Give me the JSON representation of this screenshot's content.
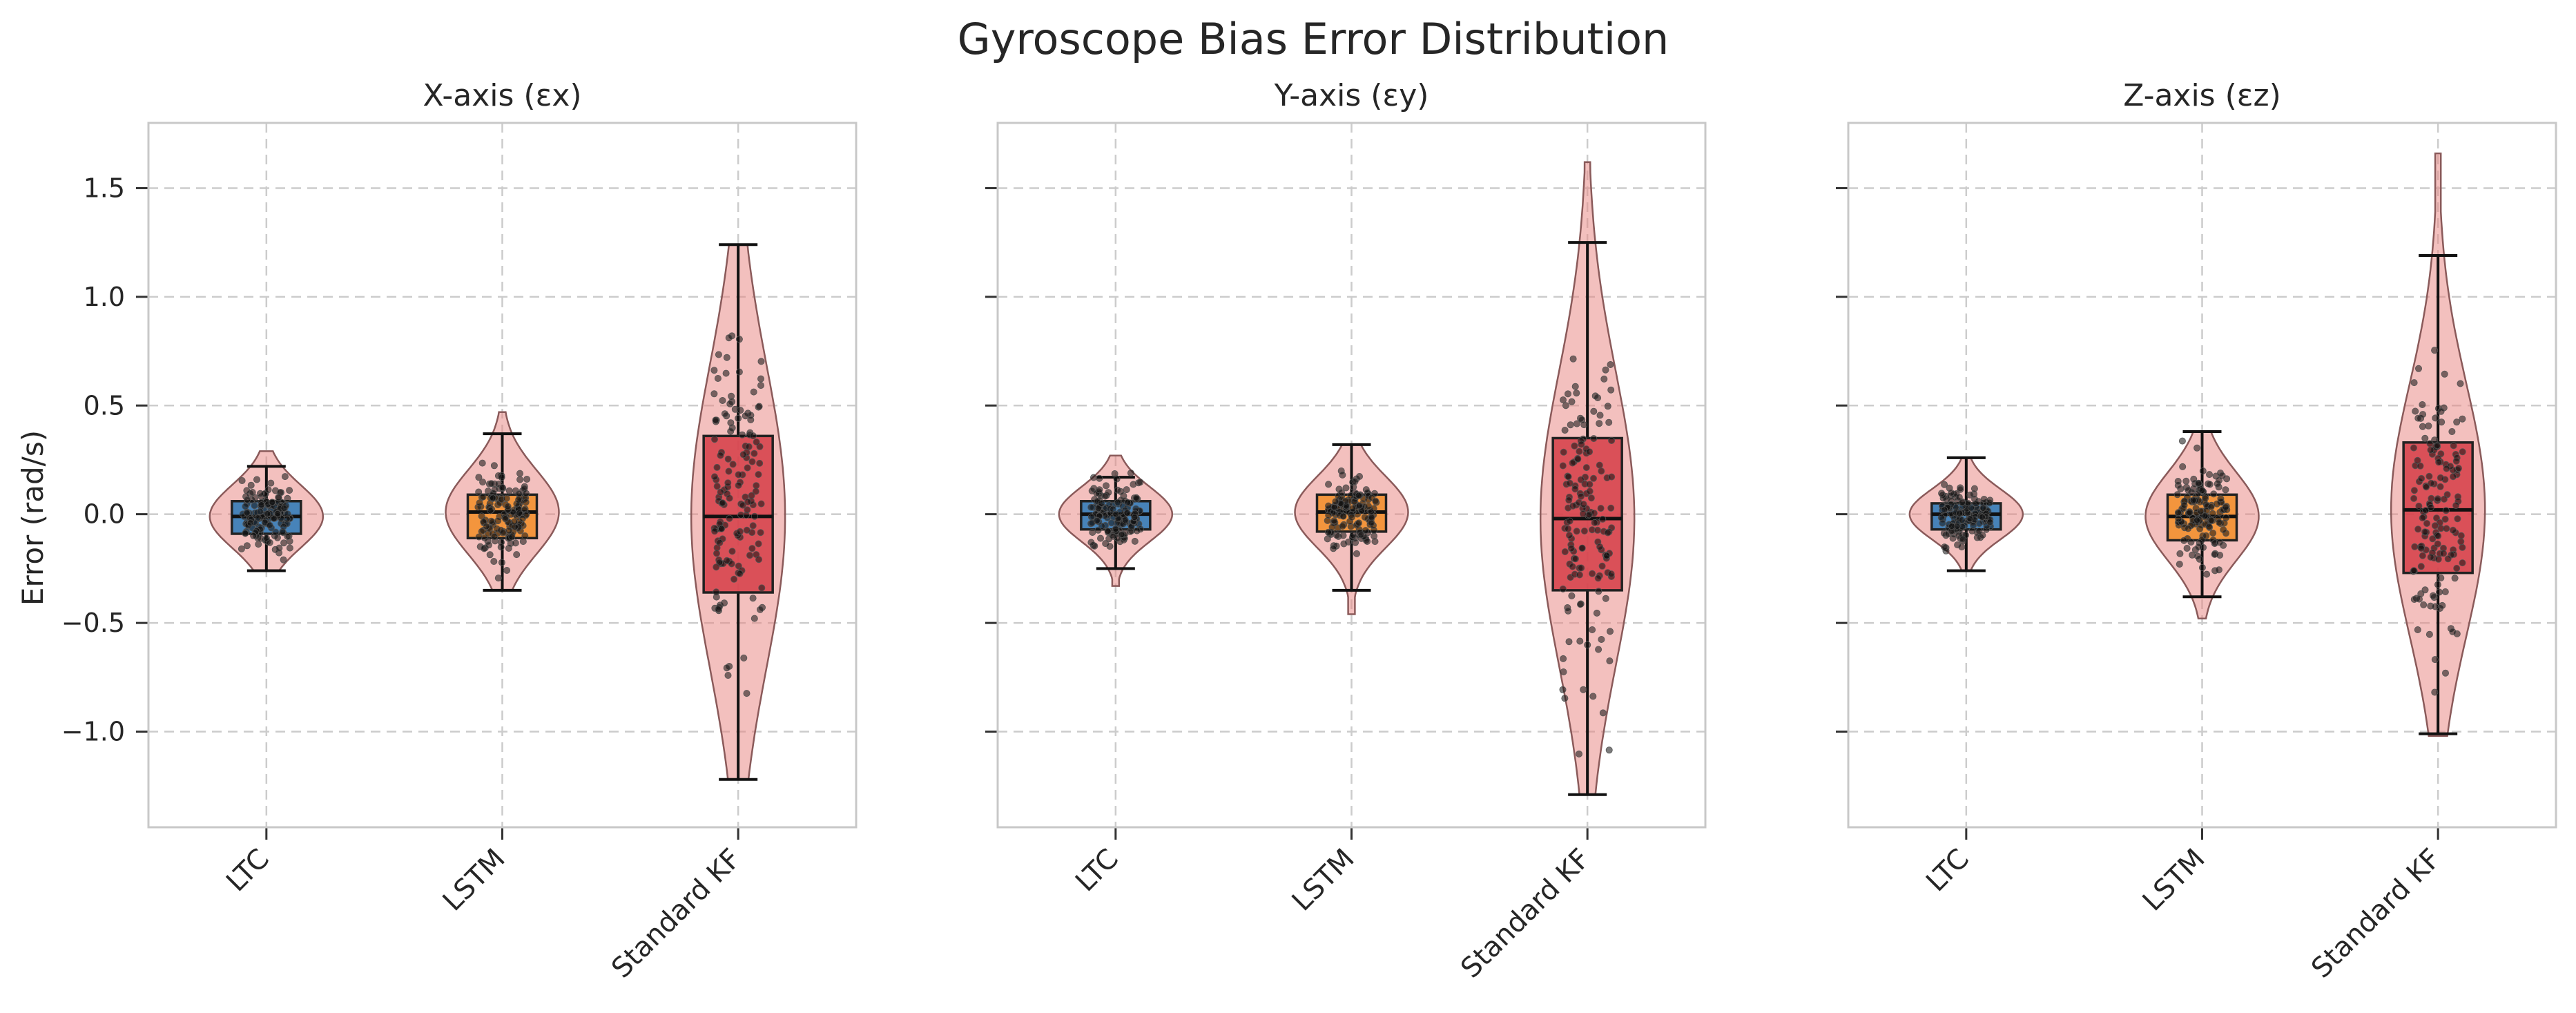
{
  "figure": {
    "title": "Gyroscope Bias Error Distribution",
    "ylabel": "Error (rad/s)"
  },
  "colors": {
    "LTC": "#2f7ab8",
    "LSTM": "#f28e2b",
    "Standard KF": "#d6404a",
    "violin": "#e8827e"
  },
  "chart_data": [
    {
      "type": "box",
      "subplot_title": "X-axis (εx)",
      "categories": [
        "LTC",
        "LSTM",
        "Standard KF"
      ],
      "ylim": [
        -1.44,
        1.8
      ],
      "yticks": [
        -1.0,
        -0.5,
        0.0,
        0.5,
        1.0,
        1.5
      ],
      "ytick_labels": [
        "−1.0",
        "−0.5",
        "0.0",
        "0.5",
        "1.0",
        "1.5"
      ],
      "grid": true,
      "series": [
        {
          "name": "LTC",
          "whisker_low": -0.26,
          "q1": -0.09,
          "median": -0.01,
          "q3": 0.06,
          "whisker_high": 0.22,
          "violin_min": -0.26,
          "violin_max": 0.29
        },
        {
          "name": "LSTM",
          "whisker_low": -0.35,
          "q1": -0.11,
          "median": 0.01,
          "q3": 0.09,
          "whisker_high": 0.37,
          "violin_min": -0.35,
          "violin_max": 0.47
        },
        {
          "name": "Standard KF",
          "whisker_low": -1.22,
          "q1": -0.36,
          "median": -0.01,
          "q3": 0.36,
          "whisker_high": 1.24,
          "violin_min": -1.22,
          "violin_max": 1.24
        }
      ]
    },
    {
      "type": "box",
      "subplot_title": "Y-axis (εy)",
      "categories": [
        "LTC",
        "LSTM",
        "Standard KF"
      ],
      "ylim": [
        -1.44,
        1.8
      ],
      "yticks": [
        -1.0,
        -0.5,
        0.0,
        0.5,
        1.0,
        1.5
      ],
      "ytick_labels": [
        "",
        "",
        "",
        "",
        "",
        ""
      ],
      "grid": true,
      "series": [
        {
          "name": "LTC",
          "whisker_low": -0.25,
          "q1": -0.07,
          "median": 0.0,
          "q3": 0.06,
          "whisker_high": 0.17,
          "violin_min": -0.33,
          "violin_max": 0.27
        },
        {
          "name": "LSTM",
          "whisker_low": -0.35,
          "q1": -0.08,
          "median": 0.01,
          "q3": 0.09,
          "whisker_high": 0.32,
          "violin_min": -0.46,
          "violin_max": 0.32
        },
        {
          "name": "Standard KF",
          "whisker_low": -1.29,
          "q1": -0.35,
          "median": -0.02,
          "q3": 0.35,
          "whisker_high": 1.25,
          "violin_min": -1.29,
          "violin_max": 1.62
        }
      ]
    },
    {
      "type": "box",
      "subplot_title": "Z-axis (εz)",
      "categories": [
        "LTC",
        "LSTM",
        "Standard KF"
      ],
      "ylim": [
        -1.44,
        1.8
      ],
      "yticks": [
        -1.0,
        -0.5,
        0.0,
        0.5,
        1.0,
        1.5
      ],
      "ytick_labels": [
        "",
        "",
        "",
        "",
        "",
        ""
      ],
      "grid": true,
      "series": [
        {
          "name": "LTC",
          "whisker_low": -0.26,
          "q1": -0.07,
          "median": 0.0,
          "q3": 0.05,
          "whisker_high": 0.26,
          "violin_min": -0.26,
          "violin_max": 0.26
        },
        {
          "name": "LSTM",
          "whisker_low": -0.38,
          "q1": -0.12,
          "median": -0.01,
          "q3": 0.09,
          "whisker_high": 0.38,
          "violin_min": -0.48,
          "violin_max": 0.38
        },
        {
          "name": "Standard KF",
          "whisker_low": -1.01,
          "q1": -0.27,
          "median": 0.02,
          "q3": 0.33,
          "whisker_high": 1.19,
          "violin_min": -1.02,
          "violin_max": 1.66
        }
      ]
    }
  ]
}
